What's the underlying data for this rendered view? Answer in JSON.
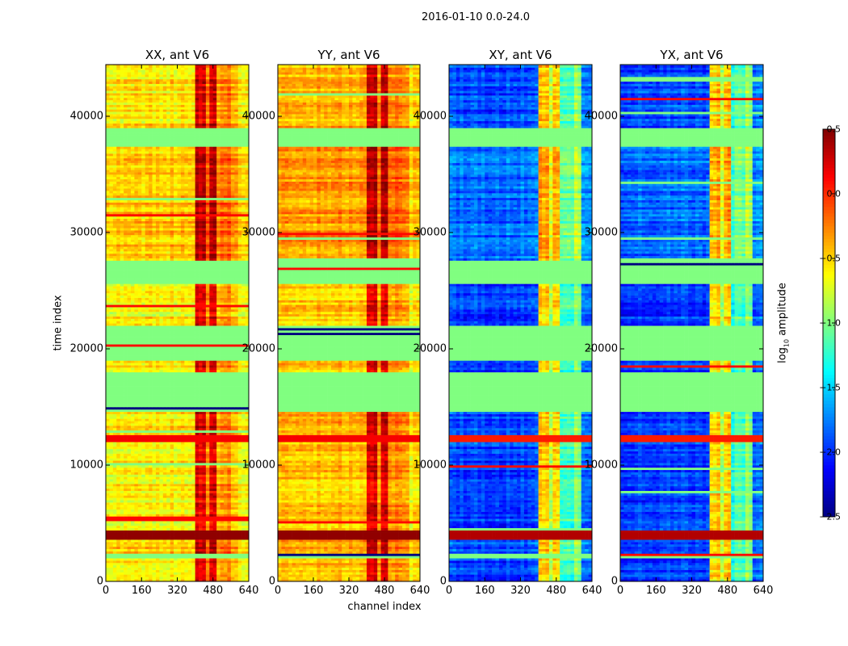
{
  "chart_data": {
    "type": "heatmap",
    "suptitle": "2016-01-10 0.0-24.0",
    "xlabel": "channel index",
    "ylabel": "time index",
    "xlim": [
      0,
      640
    ],
    "ylim": [
      0,
      44444
    ],
    "xticks": [
      "0",
      "160",
      "320",
      "480",
      "640"
    ],
    "xtick_values": [
      0,
      160,
      320,
      480,
      640
    ],
    "yticks": [
      "0",
      "10000",
      "20000",
      "30000",
      "40000"
    ],
    "ytick_values": [
      0,
      10000,
      20000,
      30000,
      40000
    ],
    "colorbar": {
      "label": "log10 amplitude",
      "label_main": "log",
      "label_sub": "10",
      "label_rest": " amplitude",
      "range": [
        -2.5,
        0.5
      ],
      "ticks": [
        "0.5",
        "0.0",
        "−0.5",
        "−1.0",
        "−1.5",
        "−2.0",
        "−2.5"
      ],
      "tick_values": [
        0.5,
        0.0,
        -0.5,
        -1.0,
        -1.5,
        -2.0,
        -2.5
      ],
      "colormap": "jet"
    },
    "flagged_value": -1.0,
    "time_segments": [
      {
        "range": [
          0,
          1900
        ],
        "kind": "normal",
        "boost": 0
      },
      {
        "range": [
          1900,
          2300
        ],
        "kind": "flagged"
      },
      {
        "range": [
          2300,
          3600
        ],
        "kind": "normal",
        "boost": 0.1
      },
      {
        "range": [
          3600,
          4400
        ],
        "kind": "saturated",
        "value": 0.45
      },
      {
        "range": [
          4400,
          12000
        ],
        "kind": "normal",
        "boost": 0
      },
      {
        "range": [
          12000,
          12600
        ],
        "kind": "saturated",
        "value": 0.15
      },
      {
        "range": [
          12600,
          14500
        ],
        "kind": "normal",
        "boost": 0.05
      },
      {
        "range": [
          14500,
          18000
        ],
        "kind": "flagged"
      },
      {
        "range": [
          18000,
          19000
        ],
        "kind": "normal",
        "boost": 0
      },
      {
        "range": [
          19000,
          22000
        ],
        "kind": "flagged"
      },
      {
        "range": [
          22000,
          25500
        ],
        "kind": "normal",
        "boost": 0
      },
      {
        "range": [
          25500,
          27500
        ],
        "kind": "flagged"
      },
      {
        "range": [
          27500,
          37400
        ],
        "kind": "normal",
        "boost": 0.15
      },
      {
        "range": [
          37400,
          39000
        ],
        "kind": "flagged"
      },
      {
        "range": [
          39000,
          44444
        ],
        "kind": "normal",
        "boost": 0.05
      }
    ],
    "channel_bins": [
      0,
      400,
      448,
      456,
      496,
      512,
      560,
      592,
      640
    ],
    "panels": [
      {
        "title": "XX, ant V6",
        "channel_levels": [
          -0.6,
          0.2,
          -0.3,
          0.2,
          -0.4,
          -0.3,
          -0.4,
          -0.6
        ]
      },
      {
        "title": "YY, ant V6",
        "channel_levels": [
          -0.45,
          0.2,
          -0.3,
          0.2,
          -0.3,
          -0.3,
          -0.35,
          -0.6
        ]
      },
      {
        "title": "XY, ant V6",
        "channel_levels": [
          -1.95,
          -0.5,
          -0.9,
          -0.5,
          -1.3,
          -1.2,
          -1.0,
          -1.8
        ]
      },
      {
        "title": "YX, ant V6",
        "channel_levels": [
          -1.95,
          -0.5,
          -0.9,
          -0.5,
          -1.3,
          -1.2,
          -1.0,
          -1.8
        ]
      }
    ]
  }
}
